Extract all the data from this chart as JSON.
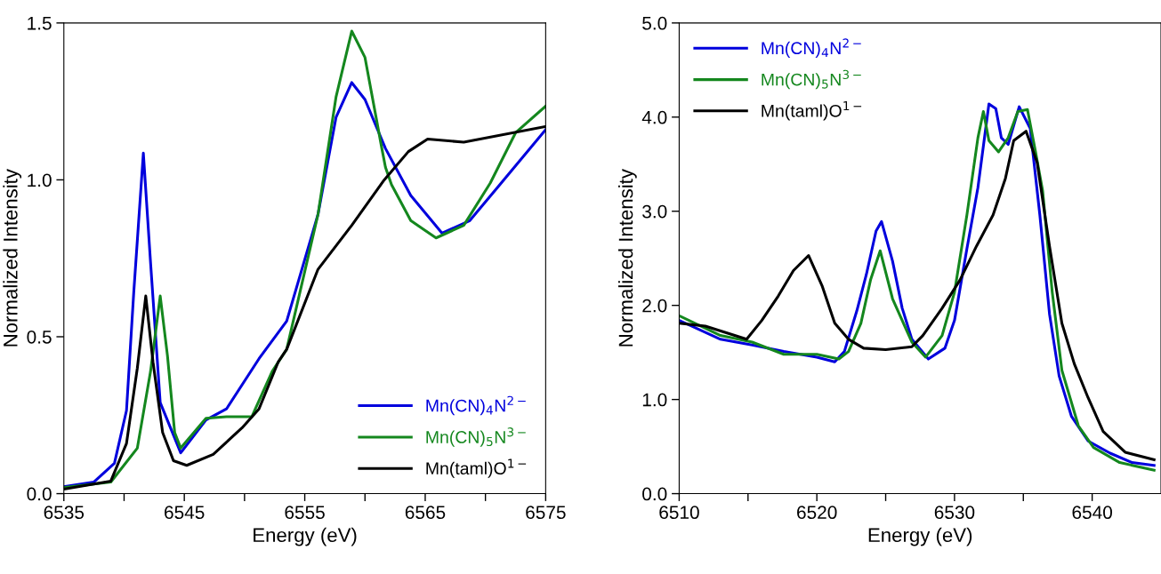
{
  "chart_data": [
    {
      "type": "line",
      "xlabel": "Energy (eV)",
      "ylabel": "Normalized Intensity",
      "xlim": [
        6535,
        6575
      ],
      "ylim": [
        0,
        1.5
      ],
      "xticks": [
        6535,
        {
          "value": 6540,
          "label": null
        },
        6545,
        {
          "value": 6550,
          "label": null
        },
        6555,
        {
          "value": 6560,
          "label": null
        },
        6565,
        {
          "value": 6570,
          "label": null
        },
        6575
      ],
      "yticks": [
        {
          "value": 0,
          "label": "0.0"
        },
        0.5,
        {
          "value": 1,
          "label": "1.0"
        },
        1.5
      ],
      "grid": false,
      "legend": "bottom right",
      "marker": "none",
      "line_style": "solid",
      "series": [
        {
          "name": "Mn(CN)$_{4}$N$^{2−}$",
          "color": "#0000dd",
          "x": [
            6535.1,
            6537.5,
            6539.2,
            6540.2,
            6540.8,
            6541.6,
            6542.2,
            6543.0,
            6544.7,
            6546.8,
            6548.5,
            6551.2,
            6553.5,
            6556.1,
            6557.6,
            6558.9,
            6560.0,
            6561.7,
            6563.8,
            6566.4,
            6568.7,
            6571.2,
            6575.0
          ],
          "values": [
            0.023,
            0.037,
            0.097,
            0.265,
            0.64,
            1.085,
            0.735,
            0.29,
            0.13,
            0.235,
            0.27,
            0.43,
            0.55,
            0.89,
            1.2,
            1.31,
            1.256,
            1.1,
            0.95,
            0.83,
            0.87,
            0.985,
            1.16
          ]
        },
        {
          "name": "Mn(CN)$_{5}$N$^{3−}$",
          "color": "#14871e",
          "x": [
            6535.1,
            6538.9,
            6541.1,
            6542.2,
            6543.0,
            6543.6,
            6544.2,
            6544.7,
            6546.8,
            6548.5,
            6550.6,
            6552.3,
            6553.5,
            6556.1,
            6557.6,
            6558.9,
            6560.0,
            6561.4,
            6561.7,
            6562.2,
            6563.8,
            6565.9,
            6568.2,
            6570.4,
            6572.5,
            6575.0
          ],
          "values": [
            0.02,
            0.037,
            0.145,
            0.39,
            0.63,
            0.44,
            0.195,
            0.145,
            0.24,
            0.245,
            0.245,
            0.39,
            0.46,
            0.89,
            1.265,
            1.474,
            1.39,
            1.1,
            1.04,
            0.985,
            0.87,
            0.815,
            0.855,
            0.99,
            1.15,
            1.235
          ]
        },
        {
          "name": "Mn(taml)O$^{1−}$",
          "color": "#000000",
          "x": [
            6535.1,
            6538.9,
            6540.2,
            6541.1,
            6541.8,
            6542.4,
            6543.2,
            6544.1,
            6545.2,
            6547.4,
            6549.8,
            6551.2,
            6552.8,
            6553.5,
            6556.1,
            6558.9,
            6561.6,
            6563.6,
            6565.2,
            6568.2,
            6575.0
          ],
          "values": [
            0.015,
            0.04,
            0.16,
            0.4,
            0.63,
            0.42,
            0.195,
            0.105,
            0.09,
            0.125,
            0.21,
            0.27,
            0.42,
            0.46,
            0.715,
            0.855,
            1.0,
            1.09,
            1.13,
            1.12,
            1.17
          ]
        }
      ]
    },
    {
      "type": "line",
      "xlabel": "Energy (eV)",
      "ylabel": "Normalized Intensity",
      "xlim": [
        6510,
        6545
      ],
      "ylim": [
        0,
        5
      ],
      "xticks": [
        6510,
        {
          "value": 6515,
          "label": null
        },
        6520,
        {
          "value": 6525,
          "label": null
        },
        6530,
        {
          "value": 6535,
          "label": null
        },
        6540
      ],
      "yticks": [
        {
          "value": 0,
          "label": "0.0"
        },
        {
          "value": 1,
          "label": "1.0"
        },
        {
          "value": 2,
          "label": "2.0"
        },
        {
          "value": 3,
          "label": "3.0"
        },
        {
          "value": 4,
          "label": "4.0"
        },
        {
          "value": 5,
          "label": "5.0"
        }
      ],
      "grid": false,
      "legend": "top left",
      "marker": "none",
      "line_style": "solid",
      "series": [
        {
          "name": "Mn(CN)$_{4}$N$^{2−}$",
          "color": "#0000dd",
          "x": [
            6510.0,
            6513.0,
            6515.3,
            6517.6,
            6520.0,
            6521.3,
            6522.0,
            6522.9,
            6523.6,
            6524.3,
            6524.7,
            6525.5,
            6526.2,
            6526.9,
            6528.1,
            6529.3,
            6530.0,
            6530.9,
            6531.7,
            6532.5,
            6533.0,
            6533.4,
            6533.9,
            6534.7,
            6535.5,
            6536.2,
            6536.9,
            6537.6,
            6538.5,
            6539.7,
            6541.3,
            6542.9,
            6544.5
          ],
          "values": [
            1.84,
            1.64,
            1.58,
            1.51,
            1.45,
            1.4,
            1.51,
            1.94,
            2.33,
            2.79,
            2.89,
            2.47,
            1.97,
            1.64,
            1.43,
            1.545,
            1.84,
            2.6,
            3.25,
            4.14,
            4.09,
            3.78,
            3.71,
            4.11,
            3.88,
            2.96,
            1.91,
            1.25,
            0.82,
            0.56,
            0.43,
            0.33,
            0.3
          ]
        },
        {
          "name": "Mn(CN)$_{5}$N$^{3−}$",
          "color": "#14871e",
          "x": [
            6510.0,
            6513.0,
            6515.3,
            6517.6,
            6520.0,
            6521.6,
            6522.3,
            6523.2,
            6523.9,
            6524.6,
            6525.5,
            6526.2,
            6526.9,
            6527.9,
            6529.1,
            6530.0,
            6530.9,
            6531.7,
            6532.1,
            6532.5,
            6533.2,
            6533.9,
            6534.6,
            6535.3,
            6535.9,
            6536.4,
            6537.1,
            6537.8,
            6539.0,
            6540.1,
            6542.0,
            6544.5
          ],
          "values": [
            1.89,
            1.68,
            1.61,
            1.48,
            1.48,
            1.43,
            1.51,
            1.81,
            2.27,
            2.58,
            2.07,
            1.84,
            1.61,
            1.45,
            1.68,
            2.14,
            2.96,
            3.78,
            4.06,
            3.75,
            3.63,
            3.78,
            4.06,
            4.08,
            3.62,
            3.22,
            2.14,
            1.31,
            0.72,
            0.49,
            0.33,
            0.25
          ]
        },
        {
          "name": "Mn(taml)O$^{1−}$",
          "color": "#000000",
          "x": [
            6510.0,
            6511.9,
            6514.9,
            6516.0,
            6517.2,
            6518.3,
            6519.4,
            6520.4,
            6521.3,
            6522.3,
            6523.4,
            6525.0,
            6526.9,
            6527.7,
            6529.1,
            6530.4,
            6531.6,
            6532.8,
            6533.7,
            6534.3,
            6535.2,
            6536.0,
            6536.9,
            6537.8,
            6538.7,
            6539.7,
            6540.8,
            6542.4,
            6544.5
          ],
          "values": [
            1.81,
            1.78,
            1.64,
            1.84,
            2.1,
            2.37,
            2.53,
            2.2,
            1.81,
            1.64,
            1.545,
            1.53,
            1.56,
            1.68,
            1.97,
            2.27,
            2.63,
            2.96,
            3.35,
            3.75,
            3.85,
            3.52,
            2.63,
            1.81,
            1.38,
            1.02,
            0.66,
            0.44,
            0.36
          ]
        }
      ]
    }
  ]
}
